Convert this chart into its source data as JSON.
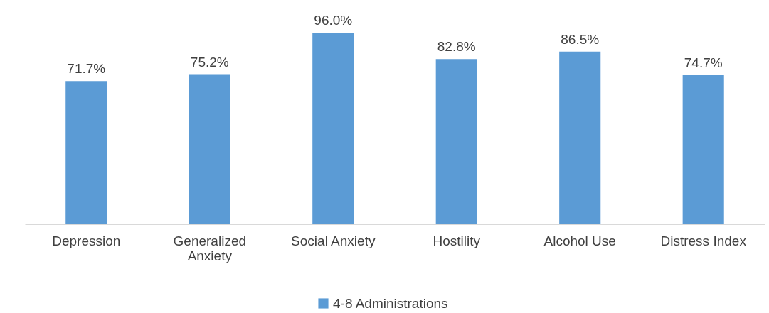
{
  "chart_data": {
    "type": "bar",
    "categories": [
      "Depression",
      "Generalized Anxiety",
      "Social Anxiety",
      "Hostility",
      "Alcohol Use",
      "Distress Index"
    ],
    "series": [
      {
        "name": "4-8 Administrations",
        "color": "#5b9bd5",
        "values": [
          71.7,
          75.2,
          96.0,
          82.8,
          86.5,
          74.7
        ],
        "value_labels": [
          "71.7%",
          "75.2%",
          "96.0%",
          "82.8%",
          "86.5%",
          "74.7%"
        ]
      }
    ],
    "tick_labels": "x",
    "legend": "bottom"
  }
}
